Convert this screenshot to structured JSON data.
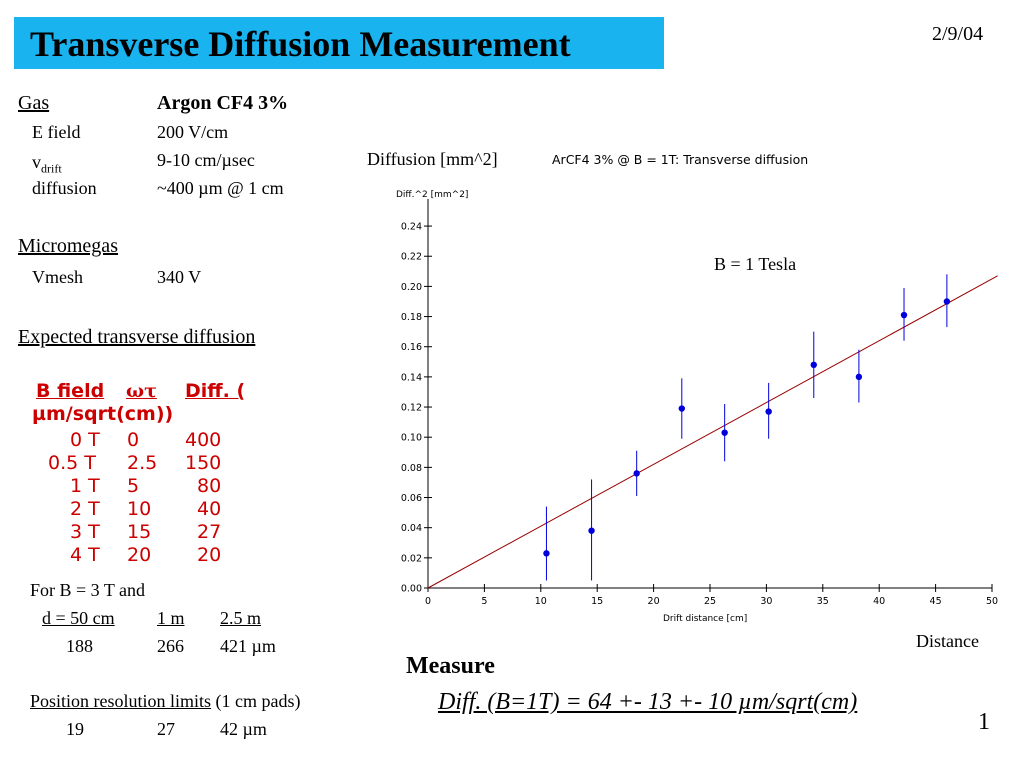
{
  "slide": {
    "title": "Transverse Diffusion Measurement",
    "date": "2/9/04",
    "page_number": "1"
  },
  "gas": {
    "heading": "Gas",
    "name": "Argon CF4  3%",
    "rows": [
      {
        "label": "E field",
        "value": "200 V/cm"
      },
      {
        "label_main": "v",
        "label_sub": "drift",
        "value": "9-10 cm/µsec"
      },
      {
        "label": "diffusion",
        "value": "~400 µm @ 1 cm"
      }
    ]
  },
  "micromegas": {
    "heading": "Micromegas",
    "rows": [
      {
        "label": "Vmesh",
        "value": "340 V"
      }
    ]
  },
  "expected": {
    "heading": "Expected transverse diffusion",
    "col_bfield": "B field",
    "col_wt": "ωτ",
    "col_diff": "Diff. (",
    "col_diff_unit": "µm/sqrt(cm))",
    "rows": [
      {
        "b": "0 T",
        "wt": "0",
        "diff": "400"
      },
      {
        "b": "0.5 T",
        "wt": "2.5",
        "diff": "150"
      },
      {
        "b": "1 T",
        "wt": "5",
        "diff": "80"
      },
      {
        "b": "2 T",
        "wt": "10",
        "diff": "40"
      },
      {
        "b": "3 T",
        "wt": "15",
        "diff": "27"
      },
      {
        "b": "4 T",
        "wt": "20",
        "diff": "20"
      }
    ]
  },
  "for_b3": {
    "heading": "For B = 3 T and",
    "cols": [
      "d = 50 cm",
      "1 m",
      "2.5 m"
    ],
    "values": [
      "188",
      "266",
      "421 µm"
    ]
  },
  "resolution": {
    "heading_u": "Position resolution limits",
    "heading_rest": " (1 cm pads)",
    "values": [
      "19",
      "27",
      "42 µm"
    ]
  },
  "labels": {
    "diffusion_axis": "Diffusion [mm^2]",
    "distance_axis": "Distance",
    "b_field": "B = 1 Tesla"
  },
  "measure": {
    "heading": "Measure",
    "result": "Diff. (B=1T) = 64 +- 13 +- 10 µm/sqrt(cm)"
  },
  "chart_data": {
    "type": "scatter",
    "title": "ArCF4 3% @ B = 1T: Transverse diffusion",
    "ylabel": "Diff.^2  [mm^2]",
    "xlabel": "Drift distance  [cm]",
    "xlim": [
      0,
      50
    ],
    "ylim": [
      0,
      0.25
    ],
    "xticks": [
      0,
      5,
      10,
      15,
      20,
      25,
      30,
      35,
      40,
      45,
      50
    ],
    "yticks": [
      0.0,
      0.02,
      0.04,
      0.06,
      0.08,
      0.1,
      0.12,
      0.14,
      0.16,
      0.18,
      0.2,
      0.22,
      0.24
    ],
    "grid": false,
    "series": [
      {
        "points": [
          {
            "x": 10.5,
            "y": 0.023,
            "yerr_low": 0.005,
            "yerr_high": 0.054
          },
          {
            "x": 14.5,
            "y": 0.038,
            "yerr_low": 0.005,
            "yerr_high": 0.072
          },
          {
            "x": 18.5,
            "y": 0.076,
            "yerr_low": 0.061,
            "yerr_high": 0.091
          },
          {
            "x": 22.5,
            "y": 0.119,
            "yerr_low": 0.099,
            "yerr_high": 0.139
          },
          {
            "x": 26.3,
            "y": 0.103,
            "yerr_low": 0.084,
            "yerr_high": 0.122
          },
          {
            "x": 30.2,
            "y": 0.117,
            "yerr_low": 0.099,
            "yerr_high": 0.136
          },
          {
            "x": 34.2,
            "y": 0.148,
            "yerr_low": 0.126,
            "yerr_high": 0.17
          },
          {
            "x": 38.2,
            "y": 0.14,
            "yerr_low": 0.123,
            "yerr_high": 0.158
          },
          {
            "x": 42.2,
            "y": 0.181,
            "yerr_low": 0.164,
            "yerr_high": 0.199
          },
          {
            "x": 46.0,
            "y": 0.19,
            "yerr_low": 0.173,
            "yerr_high": 0.208
          }
        ],
        "color": "#0000dd"
      }
    ],
    "fit_line": {
      "x": [
        0,
        50.5
      ],
      "y": [
        0.0,
        0.207
      ],
      "color": "#990000"
    }
  }
}
